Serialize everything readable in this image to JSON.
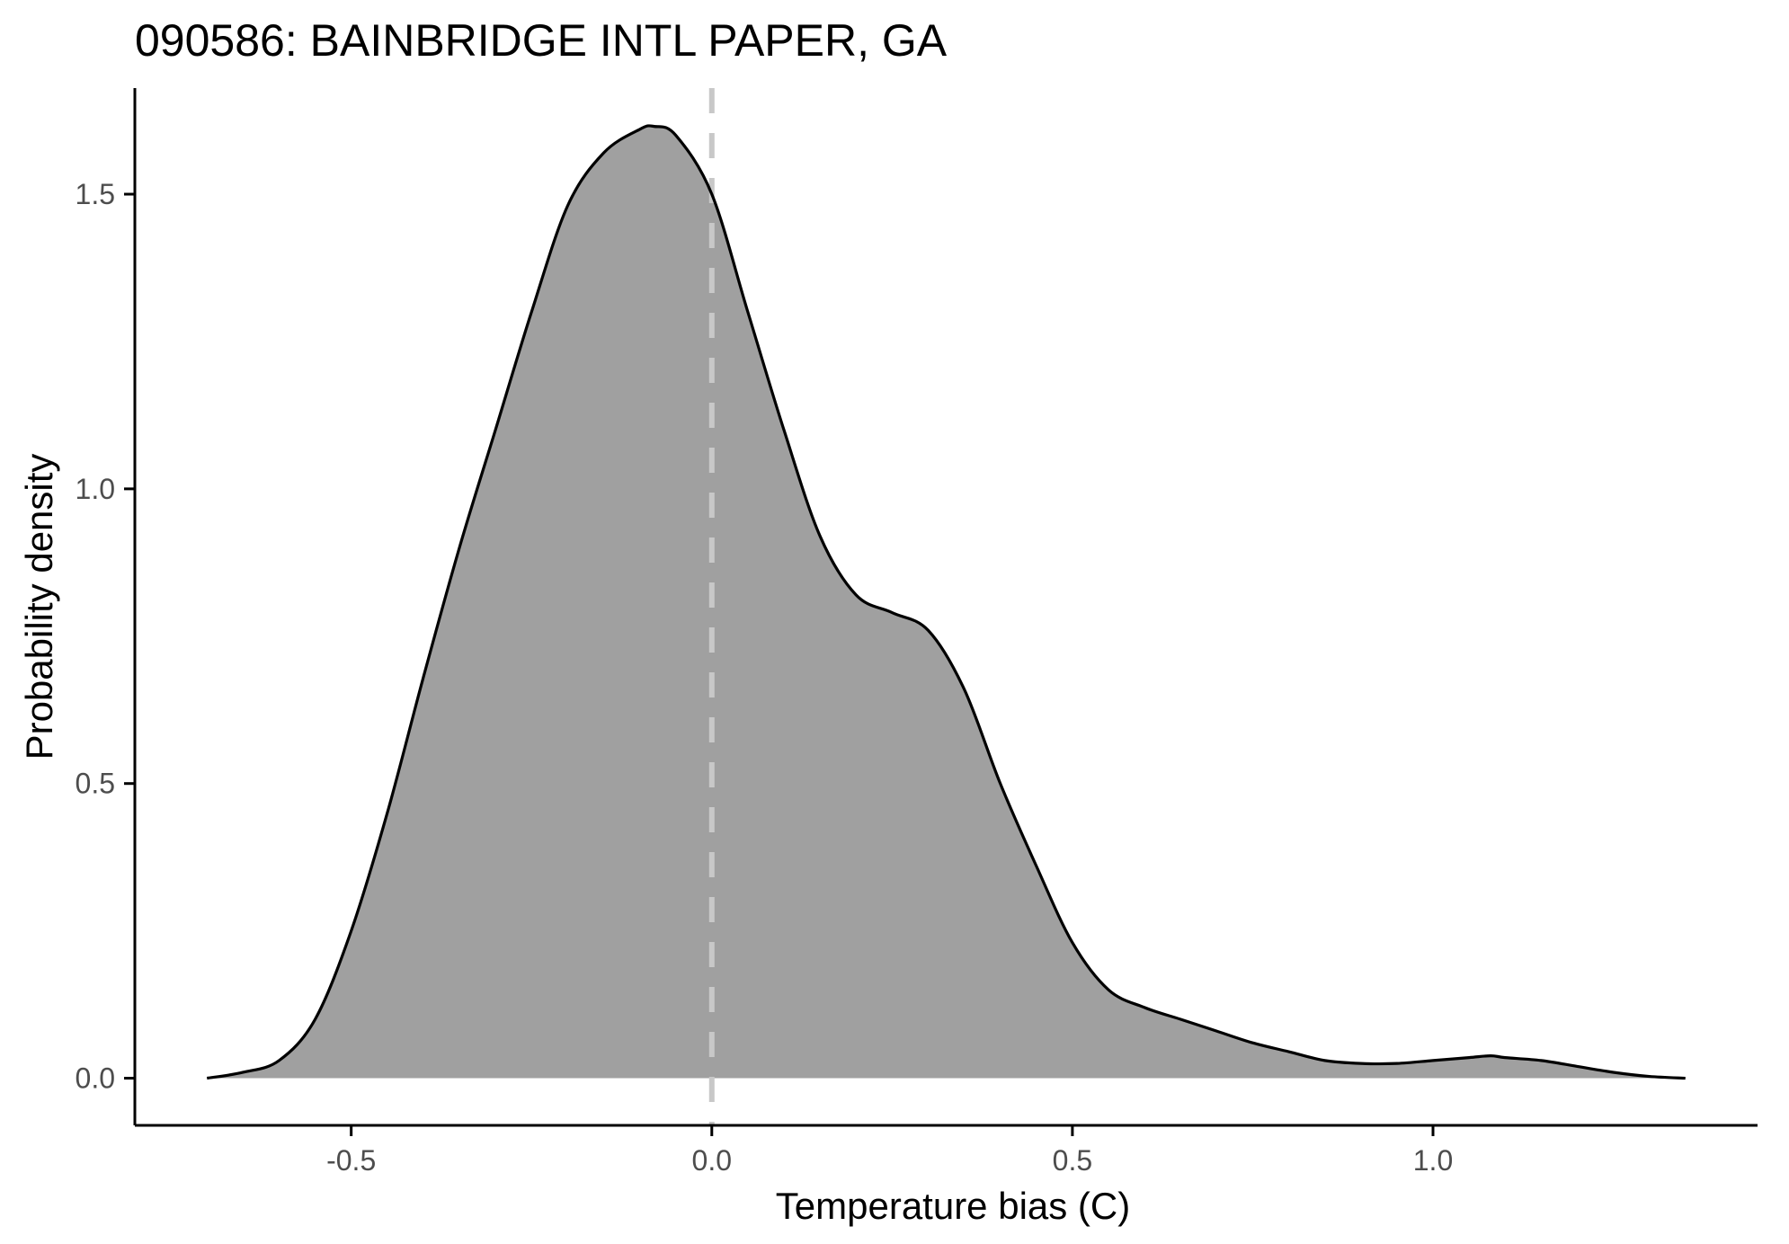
{
  "chart_data": {
    "type": "area",
    "title": "090586: BAINBRIDGE INTL PAPER, GA",
    "xlabel": "Temperature bias (C)",
    "ylabel": "Probability density",
    "xlim": [
      -0.8,
      1.45
    ],
    "ylim": [
      -0.08,
      1.68
    ],
    "x_ticks": [
      -0.5,
      0.0,
      0.5,
      1.0
    ],
    "x_tick_labels": [
      "-0.5",
      "0.0",
      "0.5",
      "1.0"
    ],
    "y_ticks": [
      0.0,
      0.5,
      1.0,
      1.5
    ],
    "y_tick_labels": [
      "0.0",
      "0.5",
      "1.0",
      "1.5"
    ],
    "grid": false,
    "legend": "none",
    "reference_line": {
      "x": 0.0,
      "style": "dashed",
      "color": "#c8c8c8"
    },
    "colors": {
      "fill": "#a0a0a0",
      "outline": "#000000",
      "axis": "#000000"
    },
    "series": [
      {
        "x": [
          -0.7,
          -0.65,
          -0.6,
          -0.55,
          -0.5,
          -0.45,
          -0.4,
          -0.35,
          -0.3,
          -0.25,
          -0.2,
          -0.15,
          -0.1,
          -0.08,
          -0.05,
          0.0,
          0.05,
          0.1,
          0.15,
          0.2,
          0.25,
          0.3,
          0.35,
          0.4,
          0.45,
          0.5,
          0.55,
          0.6,
          0.65,
          0.7,
          0.75,
          0.8,
          0.85,
          0.9,
          0.95,
          1.0,
          1.05,
          1.08,
          1.1,
          1.15,
          1.2,
          1.25,
          1.3,
          1.35
        ],
        "y": [
          0.0,
          0.01,
          0.03,
          0.1,
          0.25,
          0.45,
          0.68,
          0.9,
          1.1,
          1.3,
          1.48,
          1.57,
          1.61,
          1.615,
          1.6,
          1.5,
          1.3,
          1.1,
          0.92,
          0.82,
          0.79,
          0.76,
          0.66,
          0.5,
          0.36,
          0.23,
          0.15,
          0.12,
          0.1,
          0.08,
          0.06,
          0.045,
          0.03,
          0.025,
          0.025,
          0.03,
          0.035,
          0.038,
          0.035,
          0.03,
          0.02,
          0.01,
          0.003,
          0.0
        ]
      }
    ]
  }
}
